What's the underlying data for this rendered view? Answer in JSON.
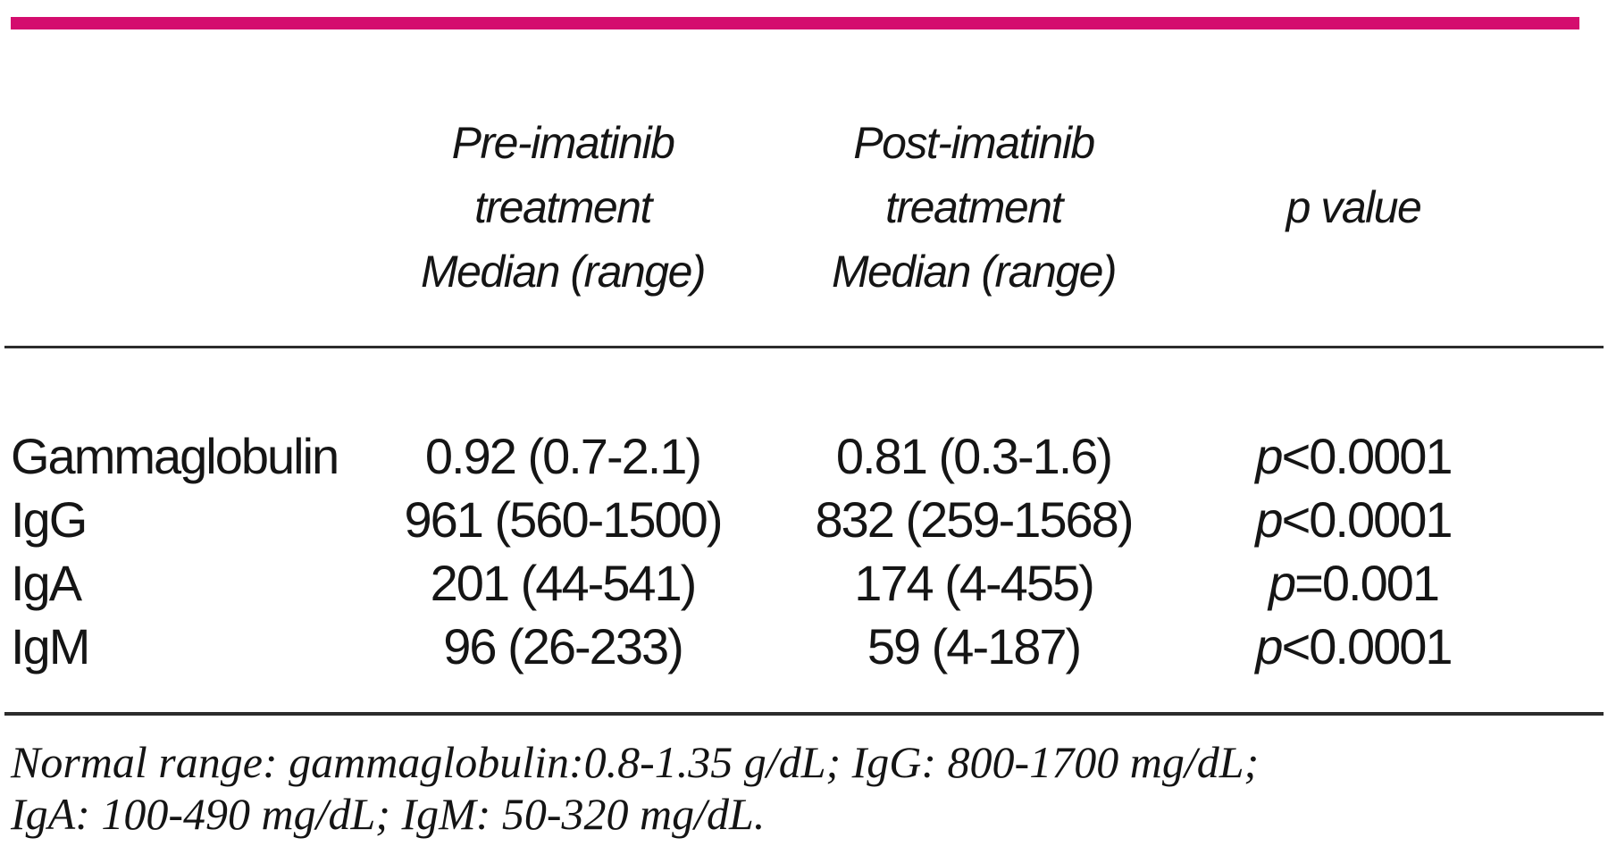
{
  "colors": {
    "accent_bar": "#d40d6e",
    "rule": "#2c2c2c",
    "text": "#151515"
  },
  "table": {
    "header": {
      "pre_col_lines": [
        "Pre-imatinib",
        "treatment",
        "Median (range)"
      ],
      "post_col_lines": [
        "Post-imatinib",
        "treatment",
        "Median (range)"
      ],
      "p_col": "p value"
    },
    "rows": [
      {
        "label": "Gammaglobulin",
        "pre": "0.92 (0.7-2.1)",
        "post": "0.81 (0.3-1.6)",
        "p_symbol": "p",
        "p_value": "<0.0001"
      },
      {
        "label": "IgG",
        "pre": "961 (560-1500)",
        "post": "832 (259-1568)",
        "p_symbol": "p",
        "p_value": "<0.0001"
      },
      {
        "label": "IgA",
        "pre": "201 (44-541)",
        "post": "174 (4-455)",
        "p_symbol": "p",
        "p_value": "=0.001"
      },
      {
        "label": "IgM",
        "pre": "96 (26-233)",
        "post": "59 (4-187)",
        "p_symbol": "p",
        "p_value": "<0.0001"
      }
    ],
    "footnote_lines": [
      "Normal range: gammaglobulin:0.8-1.35 g/dL; IgG: 800-1700 mg/dL;",
      "IgA: 100-490 mg/dL; IgM: 50-320 mg/dL."
    ]
  }
}
